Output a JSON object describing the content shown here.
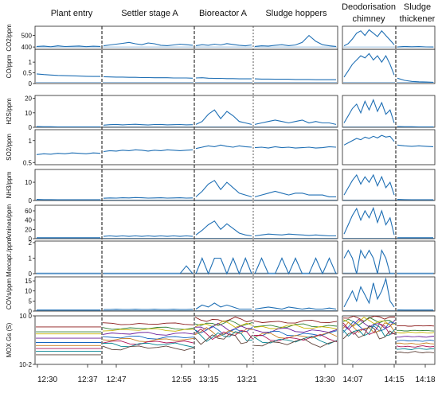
{
  "segments": [
    "Plant entry",
    "Settler stage A",
    "Bioreactor A",
    "Sludge hoppers",
    "Deodorisation chimney",
    "Sludge thickener"
  ],
  "x_tick_labels": [
    "12:30",
    "12:37",
    "12:47",
    "12:55",
    "13:15",
    "13:21",
    "13:30",
    "14:07",
    "14:15",
    "14:18"
  ],
  "y_axis_labels": [
    "CO2/ppm",
    "CO/ppm",
    "H2S/ppm",
    "SO2/ppm",
    "NH3/ppm",
    "Amines/ppm",
    "Mercapt./ppm",
    "COVs/ppm",
    "MOX Gs (S)"
  ],
  "colors": {
    "series": "#1f6fb4",
    "baseline": "#1f6fb4",
    "axis": "#222222",
    "divider": "#333333"
  },
  "chart_data": {
    "type": "line",
    "x_axis": "time",
    "grid": false,
    "panels": [
      {
        "ylabel": "CO2/ppm",
        "ylim": [
          380,
          580
        ],
        "yticks": [
          400,
          500
        ],
        "baseline": 400,
        "series_by_segment": [
          [
            405,
            408,
            402,
            410,
            404,
            406,
            409,
            403,
            407,
            405
          ],
          [
            410,
            418,
            425,
            432,
            440,
            428,
            420,
            435,
            428,
            415,
            412,
            418,
            425,
            420,
            415
          ],
          [
            412,
            420,
            415,
            425,
            418,
            430,
            422,
            415,
            410,
            418
          ],
          [
            405,
            410,
            408,
            415,
            420,
            412,
            418,
            440,
            500,
            450,
            420,
            410,
            405
          ],
          [
            410,
            430,
            470,
            520,
            540,
            500,
            550,
            520,
            490,
            540,
            500,
            460,
            420
          ],
          [
            400,
            405,
            402,
            404,
            401,
            400
          ]
        ]
      },
      {
        "ylabel": "CO/ppm",
        "ylim": [
          0,
          1.6
        ],
        "yticks": [
          0,
          0.5,
          1
        ],
        "baseline": 0.05,
        "series_by_segment": [
          [
            0.45,
            0.42,
            0.4,
            0.38,
            0.37,
            0.36,
            0.35,
            0.34,
            0.33,
            0.33
          ],
          [
            0.32,
            0.31,
            0.3,
            0.3,
            0.29,
            0.29,
            0.28,
            0.28,
            0.27,
            0.27,
            0.27,
            0.26,
            0.26,
            0.26,
            0.25
          ],
          [
            0.26,
            0.27,
            0.25,
            0.24,
            0.24,
            0.23,
            0.23,
            0.22,
            0.22,
            0.22
          ],
          [
            0.22,
            0.21,
            0.21,
            0.2,
            0.2,
            0.2,
            0.19,
            0.19,
            0.19,
            0.18,
            0.18,
            0.18,
            0.18
          ],
          [
            0.3,
            0.6,
            0.9,
            1.1,
            1.3,
            1.2,
            1.4,
            1.1,
            1.3,
            1.0,
            1.3,
            0.9,
            0.4
          ],
          [
            0.25,
            0.15,
            0.1,
            0.08,
            0.07,
            0.06
          ]
        ]
      },
      {
        "ylabel": "H2S/ppm",
        "ylim": [
          0,
          22
        ],
        "yticks": [
          0,
          10,
          20
        ],
        "baseline": 0.3,
        "series_by_segment": [
          [
            0.5,
            0.4,
            0.4,
            0.3,
            0.3,
            0.3,
            0.3,
            0.3,
            0.3,
            0.3
          ],
          [
            1.5,
            1.8,
            2.0,
            1.7,
            1.9,
            2.1,
            1.8,
            1.6,
            1.9,
            2.0,
            1.7,
            1.8,
            1.9,
            1.7,
            1.8
          ],
          [
            2,
            4,
            9,
            12,
            6,
            11,
            8,
            4,
            3,
            2
          ],
          [
            2,
            3,
            4,
            5,
            4,
            3,
            4,
            5,
            3,
            4,
            3,
            3,
            2
          ],
          [
            3,
            8,
            13,
            16,
            10,
            18,
            12,
            19,
            11,
            17,
            9,
            12,
            3
          ],
          [
            0.5,
            0.4,
            0.4,
            0.3,
            0.3,
            0.3
          ]
        ]
      },
      {
        "ylabel": "SO2/ppm",
        "ylim": [
          0.45,
          1.25
        ],
        "yticks": [
          0.5,
          1
        ],
        "baseline": null,
        "series_by_segment": [
          [
            0.68,
            0.7,
            0.69,
            0.71,
            0.7,
            0.72,
            0.71,
            0.7,
            0.72,
            0.71
          ],
          [
            0.75,
            0.77,
            0.76,
            0.78,
            0.77,
            0.79,
            0.78,
            0.76,
            0.78,
            0.77,
            0.79,
            0.78,
            0.77,
            0.78,
            0.79
          ],
          [
            0.82,
            0.85,
            0.88,
            0.86,
            0.9,
            0.87,
            0.85,
            0.88,
            0.86,
            0.85
          ],
          [
            0.84,
            0.85,
            0.83,
            0.86,
            0.84,
            0.85,
            0.83,
            0.84,
            0.85,
            0.83,
            0.84,
            0.86,
            0.85
          ],
          [
            0.9,
            0.95,
            1.0,
            1.05,
            1.02,
            1.08,
            1.05,
            1.1,
            1.06,
            1.12,
            1.08,
            1.1,
            0.98
          ],
          [
            0.9,
            0.88,
            0.87,
            0.88,
            0.87,
            0.86
          ]
        ]
      },
      {
        "ylabel": "NH3/ppm",
        "ylim": [
          0,
          17
        ],
        "yticks": [
          0,
          10
        ],
        "baseline": 0.3,
        "series_by_segment": [
          [
            0.6,
            0.5,
            0.5,
            0.4,
            0.4,
            0.4,
            0.4,
            0.4,
            0.4,
            0.4
          ],
          [
            1.2,
            1.4,
            1.3,
            1.5,
            1.4,
            1.6,
            1.5,
            1.3,
            1.4,
            1.5,
            1.3,
            1.4,
            1.5,
            1.3,
            1.4
          ],
          [
            2,
            5,
            9,
            11,
            6,
            10,
            7,
            4,
            3,
            2
          ],
          [
            2,
            3,
            4,
            5,
            4,
            3,
            4,
            4,
            3,
            3,
            3,
            2,
            2
          ],
          [
            3,
            7,
            11,
            14,
            9,
            13,
            10,
            14,
            8,
            13,
            7,
            10,
            3
          ],
          [
            0.6,
            0.5,
            0.4,
            0.4,
            0.4,
            0.4
          ]
        ]
      },
      {
        "ylabel": "Amines/ppm",
        "ylim": [
          0,
          72
        ],
        "yticks": [
          0,
          20,
          40,
          60
        ],
        "baseline": 1,
        "series_by_segment": [
          [
            2,
            2,
            2,
            2,
            2,
            2,
            2,
            2,
            2,
            2
          ],
          [
            5,
            6,
            5,
            6,
            5,
            6,
            5,
            6,
            5,
            6,
            5,
            6,
            5,
            6,
            5
          ],
          [
            8,
            18,
            30,
            38,
            20,
            32,
            22,
            12,
            8,
            6
          ],
          [
            6,
            8,
            10,
            9,
            8,
            10,
            9,
            8,
            7,
            8,
            7,
            6,
            6
          ],
          [
            10,
            30,
            50,
            65,
            40,
            60,
            45,
            66,
            35,
            60,
            30,
            45,
            8
          ],
          [
            2,
            2,
            2,
            2,
            2,
            2
          ]
        ]
      },
      {
        "ylabel": "Mercapt./ppm",
        "ylim": [
          0,
          2.1
        ],
        "yticks": [
          0,
          1,
          2
        ],
        "baseline": 0.05,
        "series_by_segment": [
          [
            0,
            0,
            0,
            0,
            0,
            0,
            0,
            0,
            0,
            0
          ],
          [
            0,
            0,
            0,
            0,
            0,
            0,
            0,
            0,
            0,
            0,
            0,
            0,
            0,
            0.5,
            0
          ],
          [
            0,
            1,
            0,
            1,
            1,
            0,
            1,
            0,
            1,
            0
          ],
          [
            0,
            1,
            0,
            0,
            1,
            0,
            1,
            0,
            0,
            1,
            0,
            1,
            0
          ],
          [
            1,
            1.5,
            1,
            0,
            1.5,
            1,
            1.5,
            1,
            0,
            1.5,
            1,
            0,
            0
          ],
          [
            0,
            0,
            0,
            0,
            0,
            0
          ]
        ]
      },
      {
        "ylabel": "COVs/ppm",
        "ylim": [
          0,
          17
        ],
        "yticks": [
          0,
          5,
          10,
          15
        ],
        "baseline": 0.3,
        "series_by_segment": [
          [
            0.5,
            0.5,
            0.5,
            0.5,
            0.5,
            0.5,
            0.5,
            0.5,
            0.5,
            0.5
          ],
          [
            0.8,
            0.8,
            0.9,
            0.8,
            0.8,
            0.9,
            0.8,
            0.8,
            0.9,
            0.8,
            0.8,
            0.9,
            0.8,
            0.8,
            0.9
          ],
          [
            1,
            3,
            2,
            4,
            2,
            3,
            2,
            1,
            1,
            1
          ],
          [
            1,
            1.5,
            2,
            1.5,
            1,
            2,
            1.5,
            1,
            1.5,
            1,
            1,
            1.5,
            1
          ],
          [
            2,
            6,
            10,
            5,
            12,
            8,
            4,
            14,
            6,
            10,
            16,
            5,
            2
          ],
          [
            0.6,
            0.5,
            0.5,
            0.5,
            0.5,
            0.5
          ]
        ]
      },
      {
        "ylabel": "MOX Gs (S)",
        "ylim": [
          0.01,
          1
        ],
        "yscale": "log",
        "yticks": [
          0.01,
          1
        ],
        "ytick_labels": [
          "10-2",
          "10 0"
        ],
        "n_sensors": 9,
        "sensor_colors": [
          "#8b1a1a",
          "#2e7d32",
          "#c8b400",
          "#6a1b9a",
          "#1565c0",
          "#c77d1f",
          "#ad1457",
          "#00838f",
          "#5d4037"
        ],
        "sensor_levels": [
          0.35,
          0.22,
          0.18,
          0.12,
          0.08,
          0.06,
          0.045,
          0.035,
          0.025
        ]
      }
    ]
  }
}
